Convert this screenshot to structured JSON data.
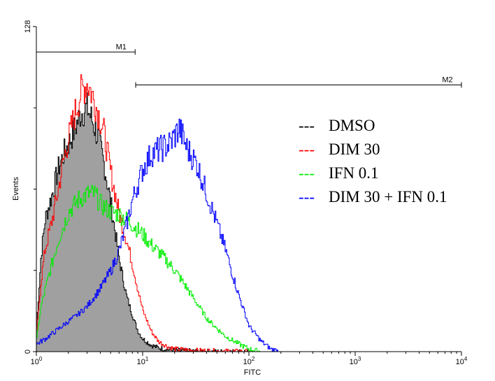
{
  "chart_data": {
    "type": "area",
    "xlabel": "FITC",
    "ylabel": "Events",
    "x_scale": "log",
    "xlim": [
      1,
      10000
    ],
    "ylim": [
      0,
      128
    ],
    "x_ticks": [
      {
        "value": 1,
        "base": "10",
        "exp": "0"
      },
      {
        "value": 10,
        "base": "10",
        "exp": "1"
      },
      {
        "value": 100,
        "base": "10",
        "exp": "2"
      },
      {
        "value": 1000,
        "base": "10",
        "exp": "3"
      },
      {
        "value": 10000,
        "base": "10",
        "exp": "4"
      }
    ],
    "y_ticks": [
      {
        "value": 0,
        "label": "0"
      },
      {
        "value": 128,
        "label": "128"
      }
    ],
    "markers": [
      {
        "name": "M1",
        "from": 1,
        "to": 8.5,
        "level": 118
      },
      {
        "name": "M2",
        "from": 8.6,
        "to": 10000,
        "level": 105
      }
    ],
    "legend": {
      "position": "right",
      "entries": [
        {
          "dash": "---",
          "label": "DMSO",
          "color": "#000000"
        },
        {
          "dash": "---",
          "label": "DIM 30",
          "color": "#ff0000"
        },
        {
          "dash": "---",
          "label": "IFN 0.1",
          "color": "#00ee00"
        },
        {
          "dash": "---",
          "label": "DIM 30 + IFN 0.1",
          "color": "#0000ff"
        }
      ]
    },
    "series": [
      {
        "key": "dmso",
        "color": "#000000",
        "fill": "#a0a0a0",
        "filled": true,
        "x": [
          1,
          1.1,
          1.2,
          1.4,
          1.6,
          1.8,
          2.0,
          2.3,
          2.6,
          3.0,
          3.4,
          3.8,
          4.3,
          5.0,
          6.0,
          7.0,
          8.0,
          9.0,
          10,
          12,
          14,
          17,
          20,
          30,
          50,
          100
        ],
        "y": [
          10,
          38,
          52,
          62,
          72,
          78,
          82,
          88,
          94,
          96,
          90,
          84,
          74,
          58,
          36,
          22,
          14,
          8,
          5,
          2.5,
          1.5,
          0.8,
          0.5,
          0.2,
          0,
          0
        ]
      },
      {
        "key": "dim30",
        "color": "#ff0000",
        "filled": false,
        "x": [
          1,
          1.1,
          1.2,
          1.4,
          1.6,
          1.8,
          2.0,
          2.3,
          2.6,
          3.0,
          3.4,
          3.8,
          4.3,
          5.0,
          6.0,
          7.0,
          8.0,
          9.0,
          10,
          12,
          14,
          17,
          20,
          30,
          50,
          100
        ],
        "y": [
          8,
          28,
          40,
          52,
          64,
          76,
          84,
          94,
          102,
          106,
          100,
          94,
          86,
          70,
          54,
          44,
          34,
          24,
          16,
          8,
          4,
          2,
          1,
          0.5,
          0.2,
          0
        ]
      },
      {
        "key": "ifn",
        "color": "#00ee00",
        "filled": false,
        "x": [
          1,
          1.1,
          1.3,
          1.6,
          2.0,
          2.5,
          3.0,
          3.5,
          4.0,
          5.0,
          6.0,
          7.0,
          8.0,
          10,
          12,
          15,
          20,
          25,
          30,
          40,
          50,
          60,
          80,
          100,
          130
        ],
        "y": [
          5,
          18,
          30,
          44,
          55,
          60,
          62,
          62,
          58,
          55,
          54,
          52,
          50,
          46,
          42,
          38,
          32,
          26,
          21,
          13,
          9,
          6,
          3,
          1,
          0
        ]
      },
      {
        "key": "dim_ifn",
        "color": "#0000ff",
        "filled": false,
        "x": [
          1,
          1.2,
          1.5,
          2.0,
          2.5,
          3.0,
          4.0,
          5.0,
          6.0,
          7.0,
          8.0,
          10,
          12,
          15,
          18,
          22,
          26,
          32,
          40,
          50,
          60,
          70,
          80,
          100,
          130,
          160,
          200
        ],
        "y": [
          3,
          5,
          8,
          12,
          15,
          18,
          25,
          32,
          40,
          50,
          60,
          72,
          78,
          80,
          82,
          88,
          80,
          74,
          62,
          50,
          40,
          30,
          22,
          10,
          4,
          1,
          0
        ]
      }
    ]
  }
}
